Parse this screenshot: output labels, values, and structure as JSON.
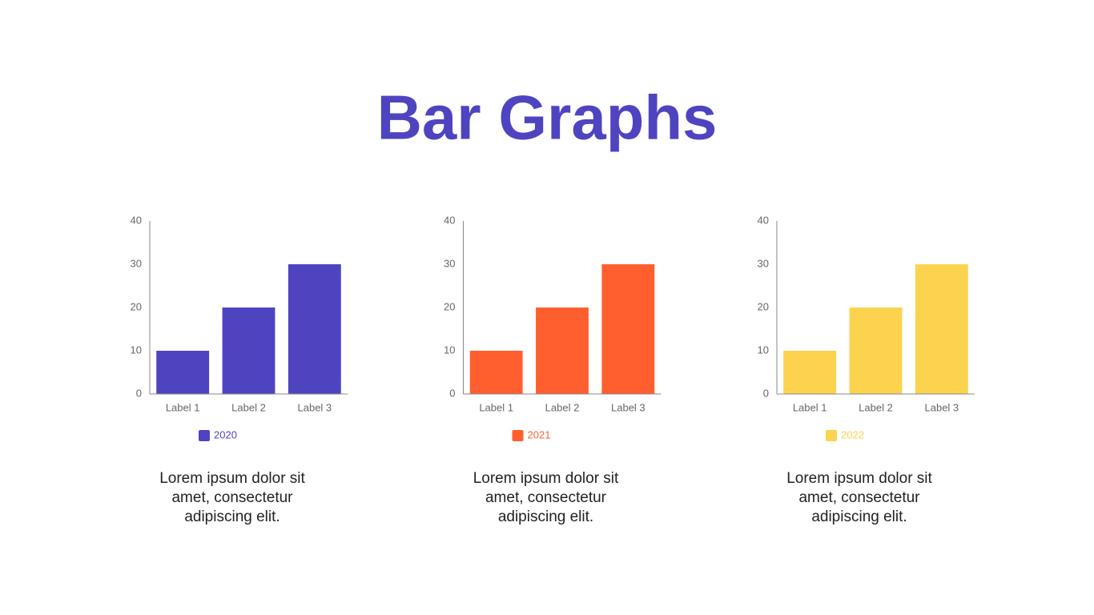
{
  "title": "Bar Graphs",
  "chart_data": [
    {
      "type": "bar",
      "categories": [
        "Label 1",
        "Label 2",
        "Label 3"
      ],
      "series": [
        {
          "name": "2020",
          "color": "#4f44c0",
          "values": [
            10,
            20,
            30
          ]
        }
      ],
      "ylim": [
        0,
        40
      ],
      "yticks": [
        0,
        10,
        20,
        30,
        40
      ],
      "grid": false,
      "caption": "Lorem ipsum dolor sit amet, consectetur adipiscing elit."
    },
    {
      "type": "bar",
      "categories": [
        "Label 1",
        "Label 2",
        "Label 3"
      ],
      "series": [
        {
          "name": "2021",
          "color": "#ff5f2e",
          "values": [
            10,
            20,
            30
          ]
        }
      ],
      "ylim": [
        0,
        40
      ],
      "yticks": [
        0,
        10,
        20,
        30,
        40
      ],
      "grid": false,
      "caption": "Lorem ipsum dolor sit amet, consectetur adipiscing elit."
    },
    {
      "type": "bar",
      "categories": [
        "Label 1",
        "Label 2",
        "Label 3"
      ],
      "series": [
        {
          "name": "2022",
          "color": "#fcd34f",
          "values": [
            10,
            20,
            30
          ]
        }
      ],
      "ylim": [
        0,
        40
      ],
      "yticks": [
        0,
        10,
        20,
        30,
        40
      ],
      "grid": false,
      "caption": "Lorem ipsum dolor sit amet, consectetur adipiscing elit."
    }
  ]
}
